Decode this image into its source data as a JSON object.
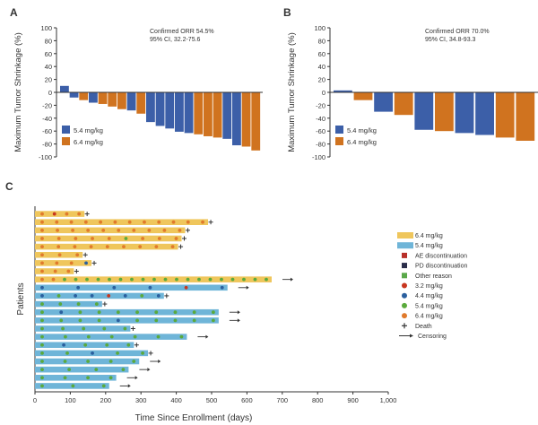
{
  "colors": {
    "blue": "#3c5fa8",
    "orange": "#d0731f",
    "gold": "#efc65c",
    "lightblue": "#6fb5d8",
    "axis": "#333333",
    "ae": "#b8302a",
    "pd": "#2b2e4a",
    "other": "#5aa84a",
    "dose32": "#c8361f",
    "dose44": "#2a5f9e",
    "dose54": "#5aaa3c",
    "dose64": "#e07a2c"
  },
  "chart_data": [
    {
      "panel": "A",
      "type": "bar",
      "ylabel": "Maximum Tumor Shrinkage (%)",
      "ylim": [
        -100,
        100
      ],
      "yticks": [
        "100",
        "80",
        "60",
        "40",
        "20",
        "0",
        "-20",
        "-40",
        "-60",
        "-80",
        "-100"
      ],
      "annotation": [
        "Confirmed ORR 54.5%",
        "95% CI, 32.2-75.6"
      ],
      "legend": [
        {
          "label": "5.4 mg/kg",
          "color": "blue"
        },
        {
          "label": "6.4 mg/kg",
          "color": "orange"
        }
      ],
      "bars": [
        {
          "value": 10,
          "dose": "5.4"
        },
        {
          "value": -8,
          "dose": "5.4"
        },
        {
          "value": -12,
          "dose": "6.4"
        },
        {
          "value": -16,
          "dose": "5.4"
        },
        {
          "value": -18,
          "dose": "6.4"
        },
        {
          "value": -22,
          "dose": "6.4"
        },
        {
          "value": -26,
          "dose": "6.4"
        },
        {
          "value": -28,
          "dose": "5.4"
        },
        {
          "value": -33,
          "dose": "6.4"
        },
        {
          "value": -46,
          "dose": "5.4"
        },
        {
          "value": -52,
          "dose": "5.4"
        },
        {
          "value": -56,
          "dose": "5.4"
        },
        {
          "value": -61,
          "dose": "5.4"
        },
        {
          "value": -63,
          "dose": "5.4"
        },
        {
          "value": -65,
          "dose": "6.4"
        },
        {
          "value": -68,
          "dose": "6.4"
        },
        {
          "value": -70,
          "dose": "6.4"
        },
        {
          "value": -72,
          "dose": "5.4"
        },
        {
          "value": -82,
          "dose": "5.4"
        },
        {
          "value": -84,
          "dose": "6.4"
        },
        {
          "value": -90,
          "dose": "6.4"
        }
      ]
    },
    {
      "panel": "B",
      "type": "bar",
      "ylabel": "Maximum Tumor Shrinkage (%)",
      "ylim": [
        -100,
        100
      ],
      "yticks": [
        "100",
        "80",
        "60",
        "40",
        "20",
        "0",
        "-20",
        "-40",
        "-60",
        "-80",
        "-100"
      ],
      "annotation": [
        "Confirmed ORR 70.0%",
        "95% CI, 34.8-93.3"
      ],
      "legend": [
        {
          "label": "5.4 mg/kg",
          "color": "blue"
        },
        {
          "label": "6.4 mg/kg",
          "color": "orange"
        }
      ],
      "bars": [
        {
          "value": 3,
          "dose": "5.4"
        },
        {
          "value": -12,
          "dose": "6.4"
        },
        {
          "value": -30,
          "dose": "5.4"
        },
        {
          "value": -35,
          "dose": "6.4"
        },
        {
          "value": -58,
          "dose": "5.4"
        },
        {
          "value": -60,
          "dose": "6.4"
        },
        {
          "value": -63,
          "dose": "5.4"
        },
        {
          "value": -66,
          "dose": "5.4"
        },
        {
          "value": -70,
          "dose": "6.4"
        },
        {
          "value": -75,
          "dose": "6.4"
        }
      ]
    },
    {
      "panel": "C",
      "type": "swimmer",
      "xlabel": "Time Since Enrollment (days)",
      "ylabel": "Patients",
      "xlim": [
        0,
        1000
      ],
      "xticks": [
        "0",
        "100",
        "200",
        "300",
        "400",
        "500",
        "600",
        "700",
        "800",
        "900",
        "1,000"
      ],
      "legend": [
        {
          "label": "6.4 mg/kg",
          "kind": "bar",
          "color": "gold"
        },
        {
          "label": "5.4 mg/kg",
          "kind": "bar",
          "color": "lightblue"
        },
        {
          "label": "AE discontinuation",
          "kind": "square",
          "color": "ae"
        },
        {
          "label": "PD discontinuation",
          "kind": "square",
          "color": "pd"
        },
        {
          "label": "Other reason",
          "kind": "square",
          "color": "other"
        },
        {
          "label": "3.2 mg/kg",
          "kind": "dot",
          "color": "dose32"
        },
        {
          "label": "4.4 mg/kg",
          "kind": "dot",
          "color": "dose44"
        },
        {
          "label": "5.4 mg/kg",
          "kind": "dot",
          "color": "dose54"
        },
        {
          "label": "6.4 mg/kg",
          "kind": "dot",
          "color": "dose64"
        },
        {
          "label": "Death",
          "kind": "plus",
          "color": "axis"
        },
        {
          "label": "Censoring",
          "kind": "arrow",
          "color": "axis"
        }
      ],
      "patients": [
        {
          "dose": "6.4",
          "end": 140,
          "dots": [
            "6.4",
            "3.2",
            "6.4",
            "6.4"
          ],
          "end_mark": "plus"
        },
        {
          "dose": "6.4",
          "end": 490,
          "dots": [
            "6.4",
            "6.4",
            "6.4",
            "6.4",
            "6.4",
            "6.4",
            "6.4",
            "6.4",
            "6.4",
            "6.4",
            "6.4",
            "6.4"
          ],
          "end_mark": "plus"
        },
        {
          "dose": "6.4",
          "end": 425,
          "dots": [
            "6.4",
            "6.4",
            "6.4",
            "6.4",
            "6.4",
            "6.4",
            "6.4",
            "6.4",
            "6.4",
            "6.4"
          ],
          "end_mark": "plus"
        },
        {
          "dose": "6.4",
          "end": 415,
          "dots": [
            "6.4",
            "6.4",
            "6.4",
            "6.4",
            "6.4",
            "5.4",
            "6.4",
            "6.4",
            "6.4"
          ],
          "end_mark": "plus"
        },
        {
          "dose": "6.4",
          "end": 405,
          "dots": [
            "6.4",
            "6.4",
            "6.4",
            "6.4",
            "6.4",
            "6.4",
            "6.4",
            "6.4",
            "6.4"
          ],
          "end_mark": "plus"
        },
        {
          "dose": "6.4",
          "end": 135,
          "dots": [
            "6.4",
            "6.4",
            "6.4"
          ],
          "end_mark": "plus"
        },
        {
          "dose": "6.4",
          "end": 160,
          "dots": [
            "6.4",
            "6.4",
            "6.4",
            "4.4"
          ],
          "end_mark": "plus"
        },
        {
          "dose": "6.4",
          "end": 110,
          "dots": [
            "6.4",
            "6.4",
            "6.4"
          ],
          "end_mark": "plus"
        },
        {
          "dose": "6.4",
          "end": 670,
          "dots": [
            "6.4",
            "6.4",
            "5.4",
            "5.4",
            "5.4",
            "5.4",
            "5.4",
            "5.4",
            "5.4",
            "5.4",
            "5.4",
            "5.4",
            "5.4",
            "5.4",
            "5.4",
            "5.4",
            "5.4",
            "5.4",
            "5.4",
            "5.4",
            "5.4"
          ],
          "end_mark": "arrow"
        },
        {
          "dose": "5.4",
          "end": 545,
          "dots": [
            "4.4",
            "4.4",
            "4.4",
            "4.4",
            "3.2",
            "4.4"
          ],
          "end_mark": "arrow"
        },
        {
          "dose": "5.4",
          "end": 365,
          "dots": [
            "4.4",
            "5.4",
            "4.4",
            "4.4",
            "3.2",
            "4.4",
            "5.4",
            "4.4"
          ],
          "end_mark": "plus"
        },
        {
          "dose": "5.4",
          "end": 190,
          "dots": [
            "5.4",
            "5.4",
            "5.4",
            "5.4"
          ],
          "end_mark": "plus"
        },
        {
          "dose": "5.4",
          "end": 520,
          "dots": [
            "5.4",
            "4.4",
            "5.4",
            "5.4",
            "5.4",
            "5.4",
            "5.4",
            "5.4",
            "5.4",
            "5.4"
          ],
          "end_mark": "arrow"
        },
        {
          "dose": "5.4",
          "end": 520,
          "dots": [
            "5.4",
            "5.4",
            "5.4",
            "5.4",
            "4.4",
            "5.4",
            "5.4",
            "5.4",
            "5.4",
            "5.4"
          ],
          "end_mark": "arrow"
        },
        {
          "dose": "5.4",
          "end": 270,
          "dots": [
            "5.4",
            "5.4",
            "5.4",
            "5.4",
            "5.4"
          ],
          "end_mark": "plus"
        },
        {
          "dose": "5.4",
          "end": 430,
          "dots": [
            "5.4",
            "5.4",
            "5.4",
            "5.4",
            "5.4",
            "5.4",
            "5.4"
          ],
          "end_mark": "arrow"
        },
        {
          "dose": "5.4",
          "end": 280,
          "dots": [
            "5.4",
            "4.4",
            "5.4",
            "5.4",
            "5.4"
          ],
          "end_mark": "plus"
        },
        {
          "dose": "5.4",
          "end": 320,
          "dots": [
            "5.4",
            "5.4",
            "4.4",
            "5.4",
            "5.4"
          ],
          "end_mark": "plus"
        },
        {
          "dose": "5.4",
          "end": 295,
          "dots": [
            "5.4",
            "5.4",
            "5.4",
            "5.4",
            "5.4"
          ],
          "end_mark": "arrow"
        },
        {
          "dose": "5.4",
          "end": 265,
          "dots": [
            "5.4",
            "5.4",
            "5.4",
            "5.4"
          ],
          "end_mark": "arrow"
        },
        {
          "dose": "5.4",
          "end": 230,
          "dots": [
            "5.4",
            "5.4",
            "5.4",
            "5.4"
          ],
          "end_mark": "arrow"
        },
        {
          "dose": "5.4",
          "end": 210,
          "dots": [
            "5.4",
            "5.4",
            "5.4"
          ],
          "end_mark": "arrow"
        }
      ]
    }
  ]
}
